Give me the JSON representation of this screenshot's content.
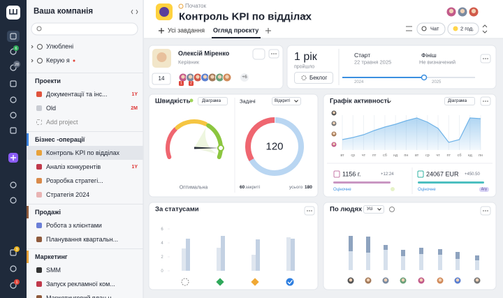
{
  "rail": {
    "badges": [
      6,
      28,
      3,
      1
    ]
  },
  "sidebar": {
    "title": "Ваша компанія",
    "favorites": "Улюблені",
    "managed": "Керую я",
    "sections": [
      {
        "title": "Проекти",
        "items": [
          {
            "label": "Документації та інс...",
            "tag": "1Y",
            "color": "#e0533d"
          },
          {
            "label": "Old",
            "tag": "2M",
            "color": "#c9ccd3"
          },
          {
            "label": "Add project"
          }
        ]
      },
      {
        "title": "Бізнес -операції",
        "color": "#3b82e0",
        "items": [
          {
            "label": "Контроль KPI по відділах",
            "color": "#e8a23a",
            "selected": true
          },
          {
            "label": "Аналіз конкурентів",
            "tag": "1Y",
            "color": "#c0394b"
          },
          {
            "label": "Розробка стратегі...",
            "color": "#d98a4a"
          },
          {
            "label": "Стратегія 2024",
            "color": "#e9b4b4"
          }
        ]
      },
      {
        "title": "Продажі",
        "color": "#8e5a3c",
        "items": [
          {
            "label": "Робота з клієнтами",
            "color": "#6b7fd7"
          },
          {
            "label": "Планування квартальн...",
            "color": "#8e5a3c"
          }
        ]
      },
      {
        "title": "Маркетинг",
        "color": "#e8a23a",
        "items": [
          {
            "label": "SMM",
            "color": "#333333"
          },
          {
            "label": "Запуск рекламної ком...",
            "color": "#c0394b"
          },
          {
            "label": "Маркетинговий план н...",
            "color": "#8e5a3c"
          }
        ]
      }
    ]
  },
  "header": {
    "breadcrumb": "Початок",
    "title": "Контроль KPI по відділах",
    "tabs": [
      "Усі завдання",
      "Огляд проєкту"
    ],
    "chat": "Чат",
    "time": "2 год."
  },
  "owner": {
    "name": "Олексій Міренко",
    "role": "Керівник",
    "count": 14,
    "more": "+6",
    "badges": [
      1,
      2
    ]
  },
  "period": {
    "elapsed": "1 рік",
    "elapsed_note": "пройшло",
    "backlog": "Беклог",
    "start_label": "Старт",
    "start": "22 травня 2025",
    "finish_label": "Фініш",
    "finish": "Не визначений",
    "ticks": [
      "2024",
      "2025"
    ]
  },
  "speed": {
    "title": "Швидкість",
    "view": "Діаграма",
    "status": "Оптимальна"
  },
  "tasks": {
    "title": "Задачі",
    "filter": "Відкриті",
    "open": 120,
    "closed": 60,
    "closed_label": "закриті",
    "total_label": "усього",
    "total": 180
  },
  "activity": {
    "title": "Графік активності",
    "view": "Діаграма",
    "categories": [
      "вт",
      "ср",
      "чт",
      "пт",
      "сб",
      "нд",
      "пн",
      "вт",
      "ср",
      "чт",
      "пт",
      "сб",
      "нд",
      "пн"
    ],
    "values": [
      30,
      36,
      44,
      56,
      66,
      74,
      84,
      92,
      80,
      62,
      22,
      30,
      92,
      90
    ],
    "ylim": [
      0,
      100
    ],
    "color": "#6fb3e8",
    "hours": "1156 г.",
    "hours_delta": "+12:24",
    "hours_note": "Оціночне",
    "budget": "24067 EUR",
    "budget_delta": "+450.50",
    "budget_note": "Оціночне",
    "tag": "Any"
  },
  "by_status": {
    "title": "За статусами",
    "ylim": [
      0,
      7
    ],
    "yticks": [
      0,
      2,
      4,
      6
    ],
    "series": [
      {
        "color": "#dfe6ef",
        "values": [
          3.2,
          3.3,
          2.3,
          4.8
        ]
      },
      {
        "color": "#c3d1e3",
        "values": [
          4.6,
          5.0,
          4.5,
          4.6
        ]
      }
    ]
  },
  "by_people": {
    "title": "По людях",
    "filter": "Усі",
    "ylim": [
      0,
      10
    ],
    "series": [
      {
        "color": "#d6e0ec",
        "values": [
          5.4,
          5.0,
          5.8,
          4.0,
          4.6,
          4.4,
          3.2,
          2.8
        ]
      },
      {
        "color": "#8ea3bf",
        "values": [
          4.4,
          4.6,
          1.4,
          1.8,
          1.8,
          1.6,
          2.0,
          1.4
        ]
      }
    ]
  }
}
